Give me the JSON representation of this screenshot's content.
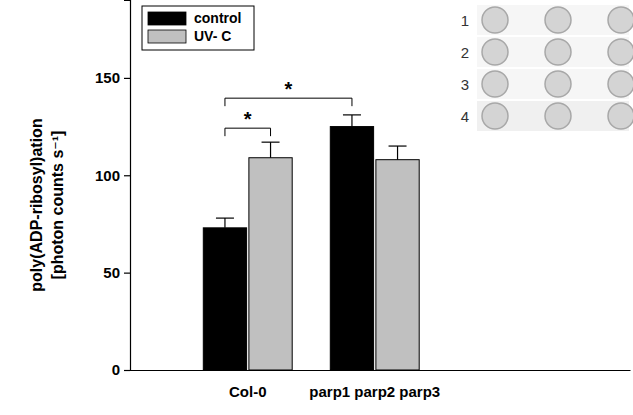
{
  "chart_data": {
    "type": "bar",
    "y_label": [
      "poly(ADP-ribosyl)ation",
      "[photon counts s⁻¹]"
    ],
    "categories": [
      "Col-0",
      "parp1 parp2 parp3"
    ],
    "series": [
      {
        "name": "control",
        "color": "#000000",
        "values": [
          73,
          125
        ],
        "errors": [
          5,
          6
        ]
      },
      {
        "name": "UV- C",
        "color": "#c0c0c0",
        "values": [
          109,
          108
        ],
        "errors": [
          8,
          7
        ]
      }
    ],
    "ylim": [
      0,
      190
    ],
    "yticks": [
      0,
      50,
      100,
      150
    ],
    "grid": false,
    "legend": "upper left",
    "annotations": [
      {
        "text": "*",
        "from": {
          "series": 0,
          "category": 0
        },
        "to": {
          "series": 1,
          "category": 0
        }
      },
      {
        "text": "*",
        "from": {
          "series": 0,
          "category": 0
        },
        "to": {
          "series": 0,
          "category": 1
        }
      }
    ],
    "inset_labels": [
      "1",
      "2",
      "3",
      "4"
    ]
  }
}
